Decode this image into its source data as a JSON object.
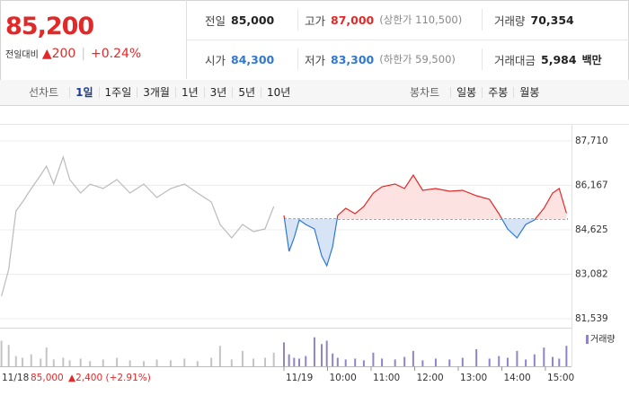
{
  "header": {
    "price": "85,200",
    "change_label": "전일대비",
    "change": "▲200",
    "change_pct": "+0.24%"
  },
  "stats": [
    {
      "label": "전일",
      "value": "85,000",
      "tone": "flat"
    },
    {
      "label": "고가",
      "value": "87,000",
      "note": "(상한가 110,500)",
      "tone": "up"
    },
    {
      "label": "거래량",
      "value": "70,354",
      "tone": "flat"
    },
    {
      "label": "시가",
      "value": "84,300",
      "tone": "down"
    },
    {
      "label": "저가",
      "value": "83,300",
      "note": "(하한가 59,500)",
      "tone": "down"
    },
    {
      "label": "거래대금",
      "value": "5,984",
      "unit": "백만",
      "tone": "flat"
    }
  ],
  "toolbar": {
    "line_label": "선차트",
    "periods": [
      "1일",
      "1주일",
      "3개월",
      "1년",
      "3년",
      "5년",
      "10년"
    ],
    "selected": 0,
    "candle_label": "봉차트",
    "candles": [
      "일봉",
      "주봉",
      "월봉"
    ]
  },
  "chart_data": {
    "type": "line",
    "base": 85000,
    "xlim": [
      -391,
      391
    ],
    "xticks": [
      {
        "value": 0,
        "label": "11/19"
      },
      {
        "value": 60,
        "label": "10:00"
      },
      {
        "value": 120,
        "label": "11:00"
      },
      {
        "value": 180,
        "label": "12:00"
      },
      {
        "value": 240,
        "label": "13:00"
      },
      {
        "value": 300,
        "label": "14:00"
      },
      {
        "value": 360,
        "label": "15:00"
      }
    ],
    "ylim": [
      81539,
      87710
    ],
    "yticks": [
      {
        "value": 81539,
        "label": "81,539"
      },
      {
        "value": 83082,
        "label": "83,082"
      },
      {
        "value": 84625,
        "label": "84,625"
      },
      {
        "value": 86167,
        "label": "86,167"
      },
      {
        "value": 87710,
        "label": "87,710"
      }
    ],
    "grid": true,
    "prev_day_label": {
      "date": "11/18",
      "close": "85,000",
      "change": "▲2,400 (+2.91%)"
    },
    "series": [
      {
        "color": "#bbbbbb",
        "x": [
          -389,
          -379,
          -369,
          -360,
          -348,
          -335,
          -327,
          -317,
          -304,
          -295,
          -280,
          -267,
          -249,
          -230,
          -212,
          -193,
          -175,
          -156,
          -137,
          -119,
          -100,
          -88,
          -72,
          -57,
          -42,
          -26,
          -14
        ],
        "values": [
          82318,
          83253,
          85279,
          85591,
          86058,
          86526,
          86838,
          86214,
          87149,
          86370,
          85902,
          86214,
          86058,
          86370,
          85902,
          86214,
          85747,
          86058,
          86214,
          85902,
          85591,
          84812,
          84344,
          84812,
          84562,
          84656,
          85435
        ]
      },
      {
        "color": "#e22929",
        "down_color": "#2f78d0",
        "fill": "#fde2e2",
        "down_fill": "#d6e4f5",
        "x": [
          0,
          7,
          14,
          21,
          30,
          42,
          52,
          59,
          67,
          74,
          85,
          98,
          110,
          123,
          135,
          153,
          166,
          178,
          191,
          209,
          228,
          246,
          265,
          283,
          296,
          308,
          321,
          333,
          345,
          358,
          370,
          379,
          389
        ],
        "values": [
          85123,
          83877,
          84344,
          84967,
          84812,
          84656,
          83721,
          83378,
          84032,
          85123,
          85373,
          85186,
          85435,
          85902,
          86121,
          86214,
          86058,
          86526,
          85996,
          86058,
          85965,
          85996,
          85809,
          85684,
          85186,
          84656,
          84344,
          84812,
          84967,
          85373,
          85902,
          86058,
          85200
        ]
      }
    ],
    "volume": {
      "name": "거래량",
      "ylim": [
        0,
        40
      ],
      "series": [
        {
          "color": "#c4c4c4",
          "x": [
            -389,
            -379,
            -369,
            -360,
            -348,
            -335,
            -327,
            -317,
            -304,
            -295,
            -280,
            -267,
            -249,
            -230,
            -212,
            -193,
            -175,
            -156,
            -137,
            -119,
            -100,
            -88,
            -72,
            -57,
            -42,
            -26,
            -14
          ],
          "values": [
            30,
            25,
            12,
            10,
            14,
            9,
            22,
            8,
            10,
            7,
            9,
            6,
            8,
            10,
            7,
            6,
            8,
            7,
            9,
            6,
            10,
            24,
            8,
            18,
            9,
            10,
            16
          ]
        },
        {
          "color": "#8e84c9",
          "x": [
            0,
            7,
            14,
            21,
            30,
            42,
            52,
            59,
            67,
            74,
            85,
            98,
            110,
            123,
            135,
            153,
            166,
            178,
            191,
            209,
            228,
            246,
            265,
            283,
            296,
            308,
            321,
            333,
            345,
            358,
            370,
            379,
            389
          ],
          "values": [
            28,
            14,
            10,
            9,
            12,
            34,
            26,
            30,
            15,
            10,
            8,
            9,
            7,
            16,
            9,
            8,
            11,
            18,
            7,
            9,
            8,
            10,
            20,
            9,
            12,
            10,
            18,
            8,
            14,
            22,
            11,
            9,
            24
          ]
        }
      ]
    }
  }
}
